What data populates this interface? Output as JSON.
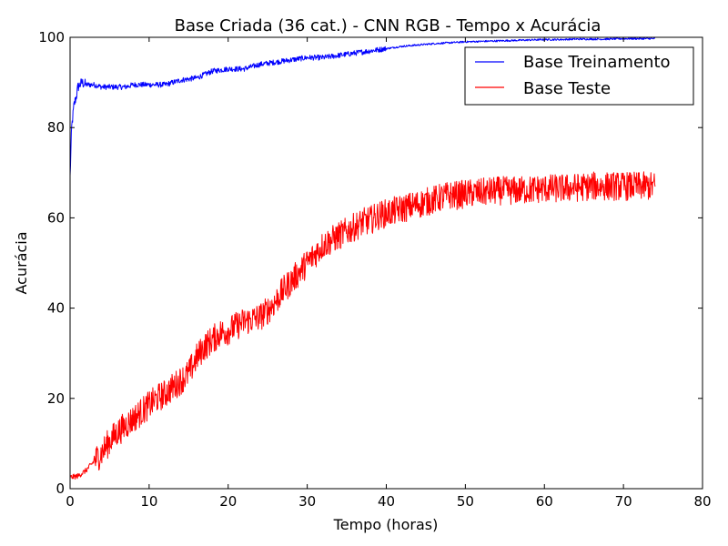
{
  "chart_data": {
    "type": "line",
    "title": "Base Criada (36 cat.) - CNN RGB - Tempo x Acurácia",
    "xlabel": "Tempo (horas)",
    "ylabel": "Acurácia",
    "xlim": [
      0,
      80
    ],
    "ylim": [
      0,
      100
    ],
    "xticks": [
      0,
      10,
      20,
      30,
      40,
      50,
      60,
      70,
      80
    ],
    "yticks": [
      0,
      20,
      40,
      60,
      80,
      100
    ],
    "grid": false,
    "legend_position": "top-right",
    "series": [
      {
        "name": "Base Treinamento",
        "color": "#0000ff",
        "noise": 0.6,
        "x": [
          0,
          0.2,
          0.5,
          0.8,
          1,
          1.5,
          2,
          3,
          4,
          5,
          6,
          7,
          8,
          9,
          10,
          12,
          14,
          16,
          18,
          20,
          22,
          24,
          26,
          28,
          30,
          32,
          34,
          36,
          38,
          40,
          42,
          44,
          46,
          48,
          50,
          52,
          54,
          56,
          58,
          60,
          62,
          64,
          66,
          68,
          70,
          72,
          74
        ],
        "y": [
          69,
          80,
          85,
          87,
          89,
          90,
          89.5,
          89.5,
          89,
          89,
          89,
          89,
          89.5,
          89.5,
          89.5,
          89.5,
          90.5,
          91,
          92.5,
          93,
          93,
          94,
          94.5,
          95,
          95.5,
          95.5,
          96,
          96.5,
          97,
          97.5,
          98,
          98.3,
          98.6,
          98.8,
          99,
          99.1,
          99.2,
          99.3,
          99.4,
          99.5,
          99.5,
          99.6,
          99.6,
          99.6,
          99.7,
          99.7,
          99.7
        ]
      },
      {
        "name": "Base Teste",
        "color": "#ff0000",
        "noise": 3.2,
        "x": [
          0,
          1,
          2,
          3,
          4,
          5,
          6,
          7,
          8,
          9,
          10,
          11,
          12,
          13,
          14,
          15,
          16,
          17,
          18,
          19,
          20,
          21,
          22,
          23,
          24,
          25,
          26,
          27,
          28,
          29,
          30,
          31,
          32,
          33,
          34,
          35,
          36,
          37,
          38,
          39,
          40,
          41,
          42,
          43,
          44,
          45,
          46,
          47,
          48,
          49,
          50,
          52,
          54,
          56,
          58,
          60,
          62,
          64,
          66,
          68,
          70,
          72,
          74
        ],
        "y": [
          2.5,
          2.8,
          4,
          6,
          8,
          10.5,
          12.5,
          14,
          15.5,
          17,
          18.5,
          20,
          21,
          22.5,
          24,
          25.5,
          29,
          31.5,
          33,
          34.5,
          35,
          36,
          37,
          37.5,
          38,
          39.5,
          41.5,
          44,
          46,
          48,
          50,
          52,
          54,
          55,
          56,
          57,
          58,
          59,
          59.5,
          60.5,
          61,
          61.5,
          62,
          62.5,
          63,
          63.5,
          64,
          64.5,
          65,
          65,
          65.3,
          65.6,
          66,
          66,
          66.2,
          66.5,
          66.5,
          66.7,
          67,
          67,
          67,
          67,
          67
        ]
      }
    ]
  }
}
